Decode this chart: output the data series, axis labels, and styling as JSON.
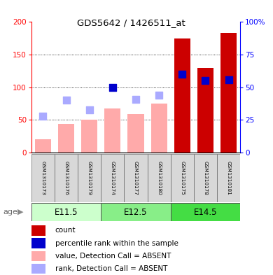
{
  "title": "GDS5642 / 1426511_at",
  "samples": [
    "GSM1310173",
    "GSM1310176",
    "GSM1310179",
    "GSM1310174",
    "GSM1310177",
    "GSM1310180",
    "GSM1310175",
    "GSM1310178",
    "GSM1310181"
  ],
  "groups": [
    {
      "label": "E11.5",
      "indices": [
        0,
        1,
        2
      ]
    },
    {
      "label": "E12.5",
      "indices": [
        3,
        4,
        5
      ]
    },
    {
      "label": "E14.5",
      "indices": [
        6,
        7,
        8
      ]
    }
  ],
  "group_colors": [
    "#ccffcc",
    "#88ee88",
    "#44dd44"
  ],
  "count_values": [
    0,
    0,
    0,
    0,
    0,
    0,
    175,
    130,
    183
  ],
  "percentile_rank_raw": [
    0,
    0,
    0,
    50,
    0,
    0,
    60,
    55,
    56
  ],
  "absent_value_values": [
    20,
    44,
    51,
    68,
    59,
    75,
    0,
    0,
    0
  ],
  "absent_rank_raw": [
    28,
    40,
    33,
    0,
    41,
    44,
    0,
    0,
    0
  ],
  "count_color": "#cc0000",
  "percentile_color": "#0000cc",
  "absent_value_color": "#ffaaaa",
  "absent_rank_color": "#aaaaff",
  "ylim_left": [
    0,
    200
  ],
  "ylim_right": [
    0,
    100
  ],
  "yticks_left": [
    0,
    50,
    100,
    150,
    200
  ],
  "yticks_right": [
    0,
    25,
    50,
    75,
    100
  ],
  "yticklabels_right": [
    "0",
    "25",
    "50",
    "75",
    "100%"
  ],
  "age_label": "age",
  "sample_bg": "#d8d8d8",
  "legend_items": [
    {
      "color": "#cc0000",
      "label": "count"
    },
    {
      "color": "#0000cc",
      "label": "percentile rank within the sample"
    },
    {
      "color": "#ffaaaa",
      "label": "value, Detection Call = ABSENT"
    },
    {
      "color": "#aaaaff",
      "label": "rank, Detection Call = ABSENT"
    }
  ]
}
